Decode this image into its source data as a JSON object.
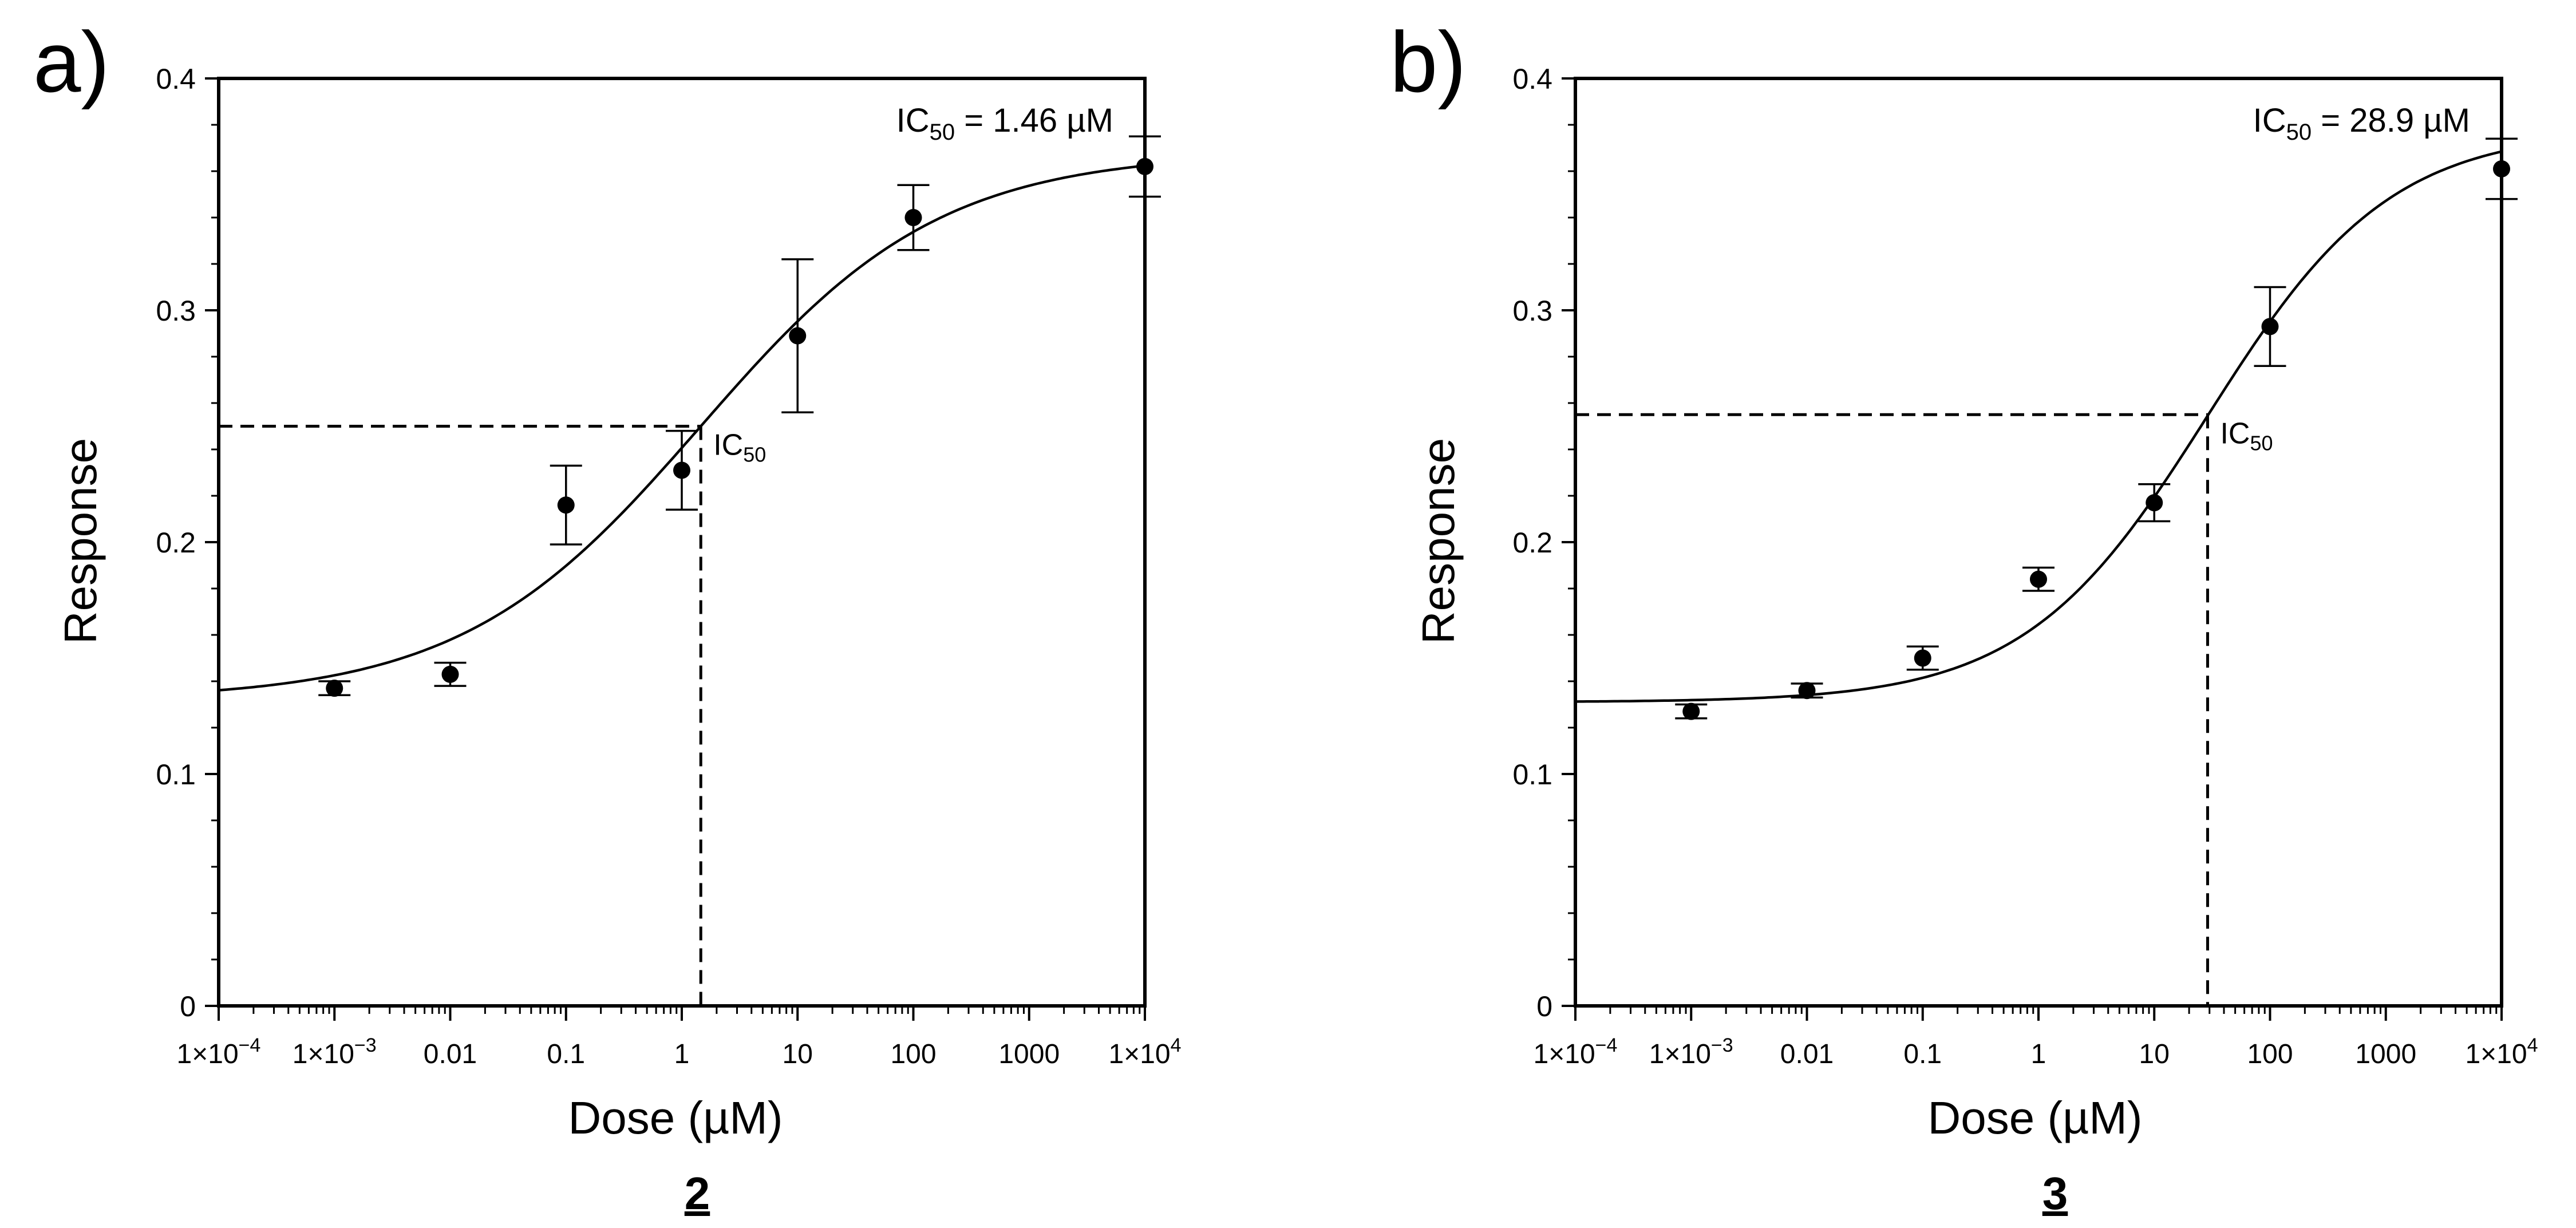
{
  "chart_data": [
    {
      "type": "scatter",
      "panel_label": "a)",
      "compound_label": "2",
      "xlabel": "Dose (µM)",
      "ylabel": "Response",
      "xscale": "log",
      "xlim": [
        0.0001,
        10000
      ],
      "ylim": [
        0,
        0.4
      ],
      "x_ticks": [
        {
          "value": 0.0001,
          "label": "1×10",
          "sup": "−4"
        },
        {
          "value": 0.001,
          "label": "1×10",
          "sup": "−3"
        },
        {
          "value": 0.01,
          "label": "0.01",
          "sup": ""
        },
        {
          "value": 0.1,
          "label": "0.1",
          "sup": ""
        },
        {
          "value": 1,
          "label": "1",
          "sup": ""
        },
        {
          "value": 10,
          "label": "10",
          "sup": ""
        },
        {
          "value": 100,
          "label": "100",
          "sup": ""
        },
        {
          "value": 1000,
          "label": "1000",
          "sup": ""
        },
        {
          "value": 10000,
          "label": "1×10",
          "sup": "4"
        }
      ],
      "y_ticks": [
        {
          "value": 0,
          "label": "0"
        },
        {
          "value": 0.1,
          "label": "0.1"
        },
        {
          "value": 0.2,
          "label": "0.2"
        },
        {
          "value": 0.3,
          "label": "0.3"
        },
        {
          "value": 0.4,
          "label": "0.4"
        }
      ],
      "points": [
        {
          "x": 0.001,
          "y": 0.137,
          "err": 0.003
        },
        {
          "x": 0.01,
          "y": 0.143,
          "err": 0.005
        },
        {
          "x": 0.1,
          "y": 0.216,
          "err": 0.017
        },
        {
          "x": 1,
          "y": 0.231,
          "err": 0.017
        },
        {
          "x": 10,
          "y": 0.289,
          "err": 0.033
        },
        {
          "x": 100,
          "y": 0.34,
          "err": 0.014
        },
        {
          "x": 10000,
          "y": 0.362,
          "err": 0.013
        }
      ],
      "fit": {
        "bottom": 0.132,
        "top": 0.368,
        "ic50": 1.46,
        "hill": 0.42
      },
      "ic50_marker": {
        "x": 1.46,
        "y": 0.25,
        "label": "IC",
        "label_sub": "50"
      },
      "annotation": {
        "prefix": "IC",
        "sub": "50",
        "text": " = 1.46 µM"
      }
    },
    {
      "type": "scatter",
      "panel_label": "b)",
      "compound_label": "3",
      "xlabel": "Dose (µM)",
      "ylabel": "Response",
      "xscale": "log",
      "xlim": [
        0.0001,
        10000
      ],
      "ylim": [
        0,
        0.4
      ],
      "x_ticks": [
        {
          "value": 0.0001,
          "label": "1×10",
          "sup": "−4"
        },
        {
          "value": 0.001,
          "label": "1×10",
          "sup": "−3"
        },
        {
          "value": 0.01,
          "label": "0.01",
          "sup": ""
        },
        {
          "value": 0.1,
          "label": "0.1",
          "sup": ""
        },
        {
          "value": 1,
          "label": "1",
          "sup": ""
        },
        {
          "value": 10,
          "label": "10",
          "sup": ""
        },
        {
          "value": 100,
          "label": "100",
          "sup": ""
        },
        {
          "value": 1000,
          "label": "1000",
          "sup": ""
        },
        {
          "value": 10000,
          "label": "1×10",
          "sup": "4"
        }
      ],
      "y_ticks": [
        {
          "value": 0,
          "label": "0"
        },
        {
          "value": 0.1,
          "label": "0.1"
        },
        {
          "value": 0.2,
          "label": "0.2"
        },
        {
          "value": 0.3,
          "label": "0.3"
        },
        {
          "value": 0.4,
          "label": "0.4"
        }
      ],
      "points": [
        {
          "x": 0.001,
          "y": 0.127,
          "err": 0.003
        },
        {
          "x": 0.01,
          "y": 0.136,
          "err": 0.003
        },
        {
          "x": 0.1,
          "y": 0.15,
          "err": 0.005
        },
        {
          "x": 1,
          "y": 0.184,
          "err": 0.005
        },
        {
          "x": 10,
          "y": 0.217,
          "err": 0.008
        },
        {
          "x": 100,
          "y": 0.293,
          "err": 0.017
        },
        {
          "x": 10000,
          "y": 0.361,
          "err": 0.013
        }
      ],
      "fit": {
        "bottom": 0.131,
        "top": 0.378,
        "ic50": 28.9,
        "hill": 0.55
      },
      "ic50_marker": {
        "x": 28.9,
        "y": 0.255,
        "label": "IC",
        "label_sub": "50"
      },
      "annotation": {
        "prefix": "IC",
        "sub": "50",
        "text": " = 28.9 µM"
      }
    }
  ]
}
